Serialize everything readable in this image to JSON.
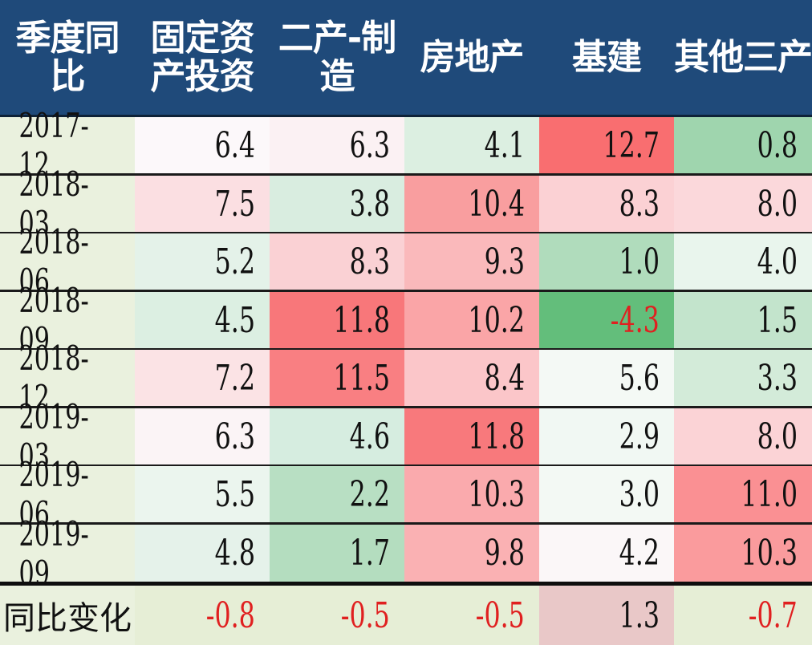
{
  "header": {
    "corner": "季度同比",
    "columns": [
      "固定资产投资",
      "二产-制造",
      "房地产",
      "基建",
      "其他三产"
    ]
  },
  "chart_data": {
    "type": "table",
    "columns": [
      "固定资产投资",
      "二产-制造",
      "房地产",
      "基建",
      "其他三产"
    ],
    "rows": [
      {
        "label": "2017-12",
        "values": [
          "6.4",
          "6.3",
          "4.1",
          "12.7",
          "0.8"
        ]
      },
      {
        "label": "2018-03",
        "values": [
          "7.5",
          "3.8",
          "10.4",
          "8.3",
          "8.0"
        ]
      },
      {
        "label": "2018-06",
        "values": [
          "5.2",
          "8.3",
          "9.3",
          "1.0",
          "4.0"
        ]
      },
      {
        "label": "2018-09",
        "values": [
          "4.5",
          "11.8",
          "10.2",
          "-4.3",
          "1.5"
        ]
      },
      {
        "label": "2018-12",
        "values": [
          "7.2",
          "11.5",
          "8.4",
          "5.6",
          "3.3"
        ]
      },
      {
        "label": "2019-03",
        "values": [
          "6.3",
          "4.6",
          "11.8",
          "2.9",
          "8.0"
        ]
      },
      {
        "label": "2019-06",
        "values": [
          "5.5",
          "2.2",
          "10.3",
          "3.0",
          "11.0"
        ]
      },
      {
        "label": "2019-09",
        "values": [
          "4.8",
          "1.7",
          "9.8",
          "4.2",
          "10.3"
        ]
      }
    ],
    "summary": {
      "label": "同比变化",
      "values": [
        "-0.8",
        "-0.5",
        "-0.5",
        "1.3",
        "-0.7"
      ]
    },
    "colors": {
      "header_bg": "#1f4a7a",
      "date_bg": "#eaf1de",
      "high": "#f8696b",
      "low": "#63be7b",
      "negative_text": "#e02020"
    },
    "cell_colors": [
      [
        "#fcf8fa",
        "#fbf1f3",
        "#dcefe1",
        "#f96e70",
        "#9fd5ae"
      ],
      [
        "#fbdfe2",
        "#d9ede0",
        "#f99e9f",
        "#fbd1d4",
        "#fbd8db"
      ],
      [
        "#e4f2e9",
        "#fad1d4",
        "#fab9bb",
        "#b0dcbc",
        "#e9f5ed"
      ],
      [
        "#dcefe2",
        "#f8777a",
        "#faa5a7",
        "#63be7b",
        "#c3e4cc"
      ],
      [
        "#fbe3e5",
        "#f97f82",
        "#fbc6c9",
        "#f4f9f5",
        "#d3ebd9"
      ],
      [
        "#fbf4f6",
        "#d6ede0",
        "#f8797c",
        "#f1f8f3",
        "#fbd3d6"
      ],
      [
        "#ebf5ee",
        "#b8dfc3",
        "#faaaad",
        "#f3f9f4",
        "#fa9093"
      ],
      [
        "#e5f2ea",
        "#b4ddbf",
        "#fab1b3",
        "#fbf7f8",
        "#fa9b9d"
      ]
    ],
    "summary_colors": [
      "#e6eed6",
      "#e6eed6",
      "#e6eed6",
      "#e9c8c8",
      "#e6eed6"
    ]
  }
}
